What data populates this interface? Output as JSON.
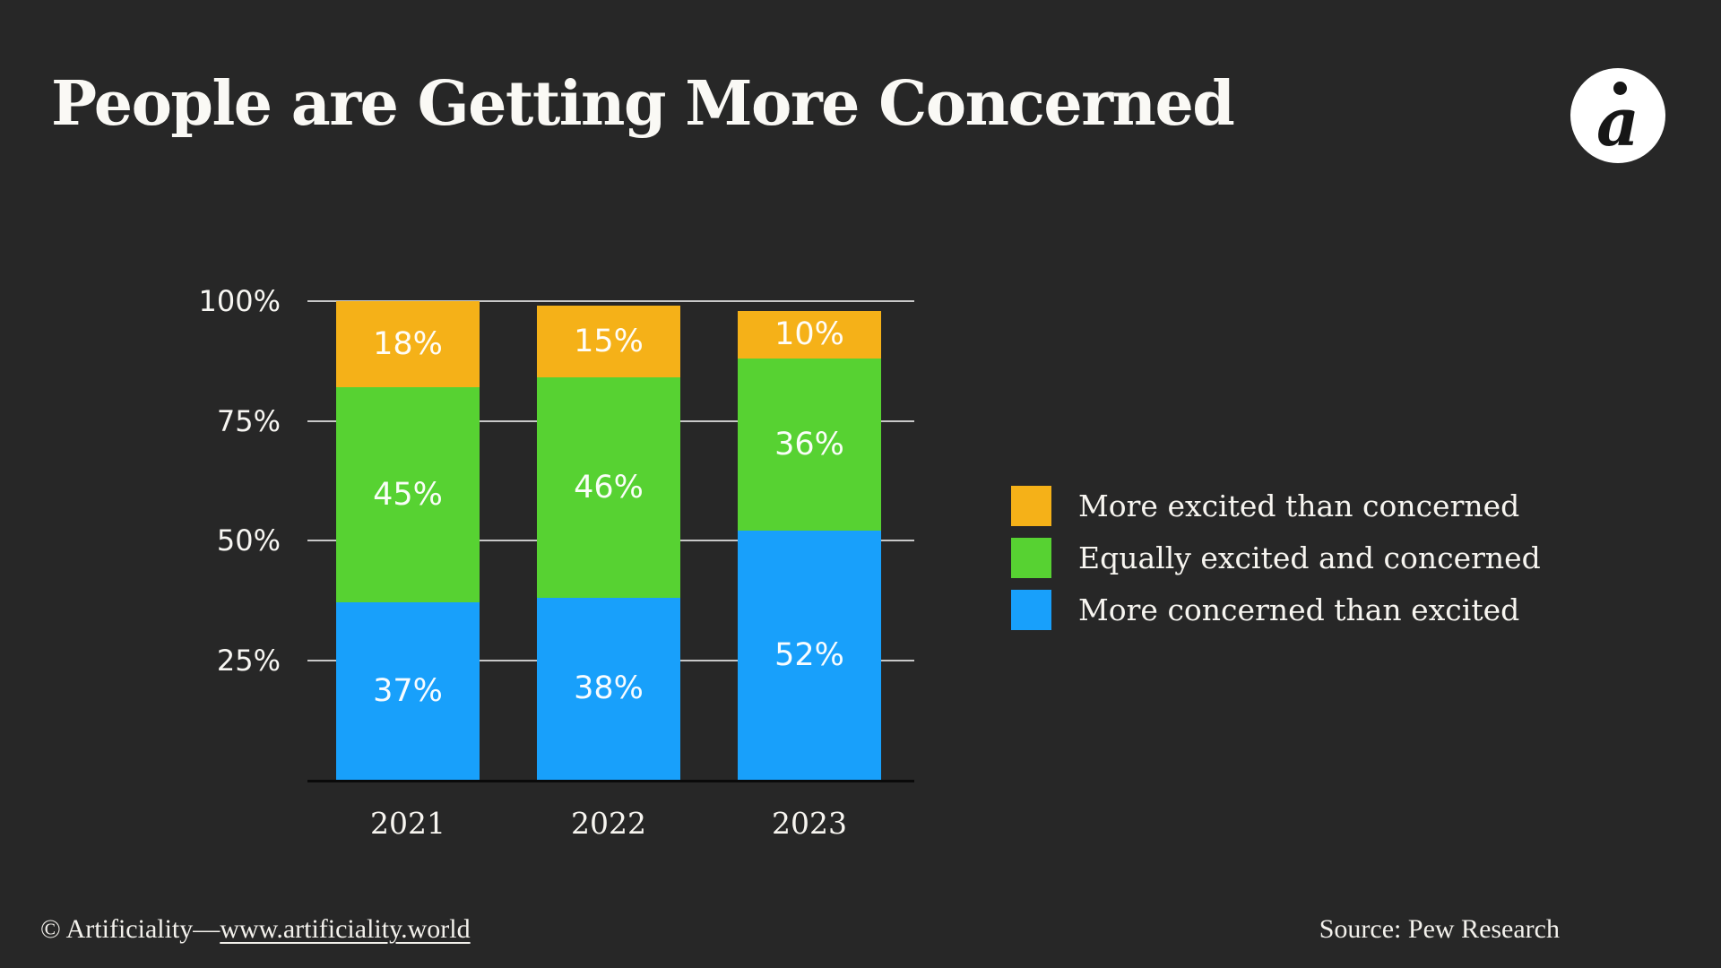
{
  "page": {
    "background": "#272727",
    "text_color": "#F7F5F0"
  },
  "header": {
    "title": "People are Getting More Concerned",
    "logo_glyph": "a"
  },
  "chart_data": {
    "type": "bar",
    "variant": "stacked",
    "title": "People are Getting More Concerned",
    "categories": [
      "2021",
      "2022",
      "2023"
    ],
    "series": [
      {
        "name": "More concerned than excited",
        "color": "#18A0FB",
        "values": [
          37,
          38,
          52
        ]
      },
      {
        "name": "Equally excited and concerned",
        "color": "#57D232",
        "values": [
          45,
          46,
          36
        ]
      },
      {
        "name": "More excited than concerned",
        "color": "#F5B118",
        "values": [
          18,
          15,
          10
        ]
      }
    ],
    "stack_order_bottom_to_top": [
      "More concerned than excited",
      "Equally excited and concerned",
      "More excited than concerned"
    ],
    "ylim": [
      0,
      100
    ],
    "y_ticks": [
      {
        "value": 25,
        "label": "25%"
      },
      {
        "value": 50,
        "label": "50%"
      },
      {
        "value": 75,
        "label": "75%"
      },
      {
        "value": 100,
        "label": "100%"
      }
    ],
    "grid": true,
    "segment_label_suffix": "%",
    "legend_position": "right-of-chart"
  },
  "legend": {
    "items": [
      {
        "label": "More excited than concerned",
        "color": "#F5B118"
      },
      {
        "label": "Equally excited and concerned",
        "color": "#57D232"
      },
      {
        "label": "More concerned than excited",
        "color": "#18A0FB"
      }
    ]
  },
  "footer": {
    "copyright_prefix": "© Artificiality—",
    "link_text": "www.artificiality.world",
    "source": "Source: Pew Research"
  }
}
